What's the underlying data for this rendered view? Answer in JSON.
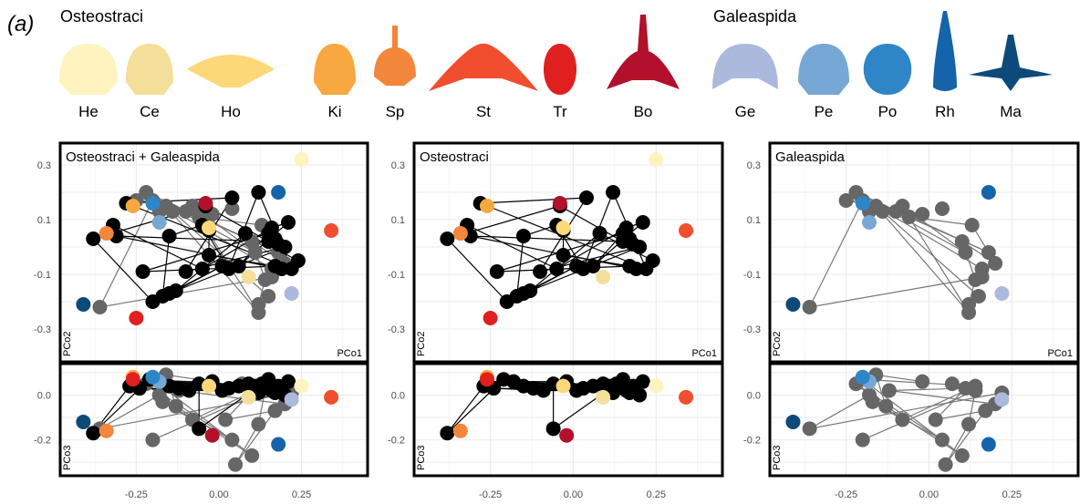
{
  "panel_label": "(a)",
  "groups": [
    "Osteostraci",
    "Galeaspida"
  ],
  "taxa": [
    {
      "code": "He",
      "group": "Osteostraci",
      "color": "#fff3bf",
      "shape": "shield"
    },
    {
      "code": "Ce",
      "group": "Osteostraci",
      "color": "#f3df9a",
      "shape": "shield"
    },
    {
      "code": "Ho",
      "group": "Osteostraci",
      "color": "#fcd879",
      "shape": "wide"
    },
    {
      "code": "Ki",
      "group": "Osteostraci",
      "color": "#f8a841",
      "shape": "shield"
    },
    {
      "code": "Sp",
      "group": "Osteostraci",
      "color": "#f2863a",
      "shape": "spine"
    },
    {
      "code": "St",
      "group": "Osteostraci",
      "color": "#f04e2e",
      "shape": "arch"
    },
    {
      "code": "Tr",
      "group": "Osteostraci",
      "color": "#e01f1f",
      "shape": "oval"
    },
    {
      "code": "Bo",
      "group": "Osteostraci",
      "color": "#b3102b",
      "shape": "horn"
    },
    {
      "code": "Ge",
      "group": "Galeaspida",
      "color": "#aab9dc",
      "shape": "crescent"
    },
    {
      "code": "Pe",
      "group": "Galeaspida",
      "color": "#76a7d5",
      "shape": "shield"
    },
    {
      "code": "Po",
      "group": "Galeaspida",
      "color": "#2f86c6",
      "shape": "oval"
    },
    {
      "code": "Rh",
      "group": "Galeaspida",
      "color": "#1564a9",
      "shape": "rostrum"
    },
    {
      "code": "Ma",
      "group": "Galeaspida",
      "color": "#0d4a7a",
      "shape": "flat"
    }
  ],
  "colors": {
    "osteostraci_points": "#000000",
    "galeaspida_points": "#666666",
    "grid": "#ebebeb",
    "frame": "#000000"
  },
  "chart_data": [
    {
      "type": "scatter",
      "title": "Osteostraci + Galeaspida",
      "xlabel": "PCo1",
      "ylabel": "PCo2",
      "xlim": [
        -0.48,
        0.45
      ],
      "ylim": [
        -0.42,
        0.38
      ],
      "y_ticks": [
        0.3,
        0.1,
        -0.1,
        -0.3
      ],
      "grid": true,
      "series": [
        {
          "group": "Galeaspida",
          "points": [
            [
              -0.36,
              -0.22
            ],
            [
              -0.25,
              0.17
            ],
            [
              -0.22,
              0.2
            ],
            [
              -0.2,
              0.17
            ],
            [
              -0.18,
              0.13
            ],
            [
              -0.16,
              0.15
            ],
            [
              -0.14,
              0.13
            ],
            [
              -0.1,
              0.13
            ],
            [
              -0.08,
              0.15
            ],
            [
              -0.06,
              0.11
            ],
            [
              -0.02,
              0.12
            ],
            [
              0.04,
              0.14
            ],
            [
              0.1,
              0.02
            ],
            [
              0.11,
              -0.02
            ],
            [
              0.13,
              0.08
            ],
            [
              0.16,
              -0.08
            ],
            [
              0.16,
              -0.11
            ],
            [
              0.18,
              -0.02
            ],
            [
              0.2,
              -0.06
            ],
            [
              0.12,
              -0.21
            ],
            [
              0.12,
              -0.24
            ],
            [
              0.14,
              -0.12
            ],
            [
              0.15,
              -0.18
            ]
          ]
        },
        {
          "group": "Osteostraci",
          "points": [
            [
              -0.38,
              0.03
            ],
            [
              -0.28,
              0.16
            ],
            [
              -0.23,
              -0.09
            ],
            [
              -0.2,
              -0.2
            ],
            [
              -0.17,
              -0.18
            ],
            [
              -0.15,
              -0.17
            ],
            [
              -0.13,
              -0.16
            ],
            [
              -0.1,
              -0.09
            ],
            [
              -0.05,
              -0.08
            ],
            [
              -0.04,
              0.15
            ],
            [
              0.04,
              0.18
            ],
            [
              0.06,
              -0.07
            ],
            [
              0.08,
              0.05
            ],
            [
              0.12,
              0.2
            ],
            [
              0.15,
              0.05
            ],
            [
              0.15,
              0.02
            ],
            [
              0.17,
              0.03
            ],
            [
              0.17,
              -0.07
            ],
            [
              0.19,
              -0.08
            ],
            [
              0.2,
              0.0
            ],
            [
              0.21,
              0.09
            ],
            [
              0.24,
              -0.05
            ],
            [
              -0.05,
              0.08
            ],
            [
              -0.03,
              -0.03
            ],
            [
              0.01,
              -0.07
            ],
            [
              0.03,
              -0.08
            ],
            [
              0.16,
              0.07
            ],
            [
              0.18,
              0.01
            ],
            [
              0.22,
              -0.08
            ],
            [
              -0.32,
              0.08
            ],
            [
              -0.31,
              0.04
            ],
            [
              -0.15,
              0.04
            ],
            [
              -0.03,
              0.06
            ]
          ]
        },
        {
          "group": "taxon",
          "codes": [
            "He",
            "Ce",
            "Ho",
            "Ki",
            "Sp",
            "St",
            "Tr",
            "Bo",
            "Ge",
            "Pe",
            "Po",
            "Rh",
            "Ma"
          ],
          "points": [
            [
              0.25,
              0.32
            ],
            [
              0.09,
              -0.11
            ],
            [
              -0.03,
              0.07
            ],
            [
              -0.26,
              0.15
            ],
            [
              -0.34,
              0.05
            ],
            [
              0.34,
              0.06
            ],
            [
              -0.25,
              -0.26
            ],
            [
              -0.04,
              0.16
            ],
            [
              0.22,
              -0.17
            ],
            [
              -0.18,
              0.09
            ],
            [
              -0.2,
              0.16
            ],
            [
              0.18,
              0.2
            ],
            [
              -0.41,
              -0.21
            ]
          ]
        }
      ],
      "edges_note": "phylomorphospace branches"
    },
    {
      "type": "scatter",
      "title": "",
      "xlabel": "PCo1",
      "ylabel": "PCo3",
      "xlim": [
        -0.48,
        0.45
      ],
      "ylim": [
        -0.36,
        0.14
      ],
      "y_ticks": [
        0.0,
        -0.2
      ],
      "x_ticks": [
        -0.25,
        0.0,
        0.25
      ],
      "x_tick_labels": [
        "-0.25",
        "0.00",
        "0.25"
      ],
      "grid": true,
      "series": [
        {
          "group": "Galeaspida",
          "points": [
            [
              -0.36,
              -0.15
            ],
            [
              -0.22,
              0.05
            ],
            [
              -0.2,
              0.07
            ],
            [
              -0.18,
              0.0
            ],
            [
              -0.17,
              -0.03
            ],
            [
              -0.12,
              0.02
            ],
            [
              -0.16,
              0.09
            ],
            [
              -0.13,
              -0.05
            ],
            [
              -0.08,
              -0.11
            ],
            [
              0.02,
              -0.11
            ],
            [
              0.04,
              -0.2
            ],
            [
              0.07,
              0.05
            ],
            [
              0.12,
              -0.13
            ],
            [
              0.14,
              0.04
            ],
            [
              0.17,
              -0.07
            ],
            [
              0.2,
              -0.04
            ],
            [
              0.22,
              0.01
            ],
            [
              0.1,
              -0.27
            ],
            [
              0.05,
              -0.31
            ],
            [
              -0.2,
              -0.2
            ],
            [
              0.11,
              0.03
            ],
            [
              0.14,
              0.02
            ],
            [
              -0.02,
              0.06
            ]
          ]
        },
        {
          "group": "Osteostraci",
          "points": [
            [
              -0.38,
              -0.17
            ],
            [
              -0.26,
              0.06
            ],
            [
              -0.24,
              0.03
            ],
            [
              -0.21,
              0.07
            ],
            [
              -0.18,
              0.06
            ],
            [
              -0.15,
              0.04
            ],
            [
              -0.12,
              0.03
            ],
            [
              -0.09,
              0.02
            ],
            [
              -0.06,
              0.05
            ],
            [
              -0.06,
              -0.15
            ],
            [
              -0.02,
              0.06
            ],
            [
              0.03,
              0.03
            ],
            [
              0.06,
              0.04
            ],
            [
              0.09,
              0.05
            ],
            [
              0.11,
              0.04
            ],
            [
              0.13,
              0.05
            ],
            [
              0.15,
              0.07
            ],
            [
              0.16,
              0.02
            ],
            [
              0.18,
              0.04
            ],
            [
              0.2,
              0.0
            ],
            [
              0.21,
              0.06
            ],
            [
              -0.27,
              0.04
            ],
            [
              0.01,
              0.02
            ],
            [
              0.12,
              0.01
            ],
            [
              0.17,
              0.01
            ]
          ]
        },
        {
          "group": "taxon",
          "codes": [
            "He",
            "Ce",
            "Ho",
            "Ki",
            "Sp",
            "St",
            "Tr",
            "Bo",
            "Ge",
            "Pe",
            "Po",
            "Rh",
            "Ma"
          ],
          "points": [
            [
              0.25,
              0.04
            ],
            [
              0.09,
              -0.01
            ],
            [
              -0.03,
              0.04
            ],
            [
              -0.26,
              0.08
            ],
            [
              -0.34,
              -0.16
            ],
            [
              0.34,
              -0.01
            ],
            [
              -0.26,
              0.07
            ],
            [
              -0.02,
              -0.18
            ],
            [
              0.22,
              -0.02
            ],
            [
              -0.18,
              0.06
            ],
            [
              -0.2,
              0.08
            ],
            [
              0.18,
              -0.22
            ],
            [
              -0.41,
              -0.12
            ]
          ]
        }
      ]
    }
  ],
  "panels": [
    {
      "key": "both",
      "title": "Osteostraci + Galeaspida"
    },
    {
      "key": "osteo",
      "title": "Osteostraci"
    },
    {
      "key": "galea",
      "title": "Galeaspida"
    }
  ],
  "axis": {
    "x_label": "PCo1",
    "y_label_top": "PCo2",
    "y_label_bottom": "PCo3"
  }
}
